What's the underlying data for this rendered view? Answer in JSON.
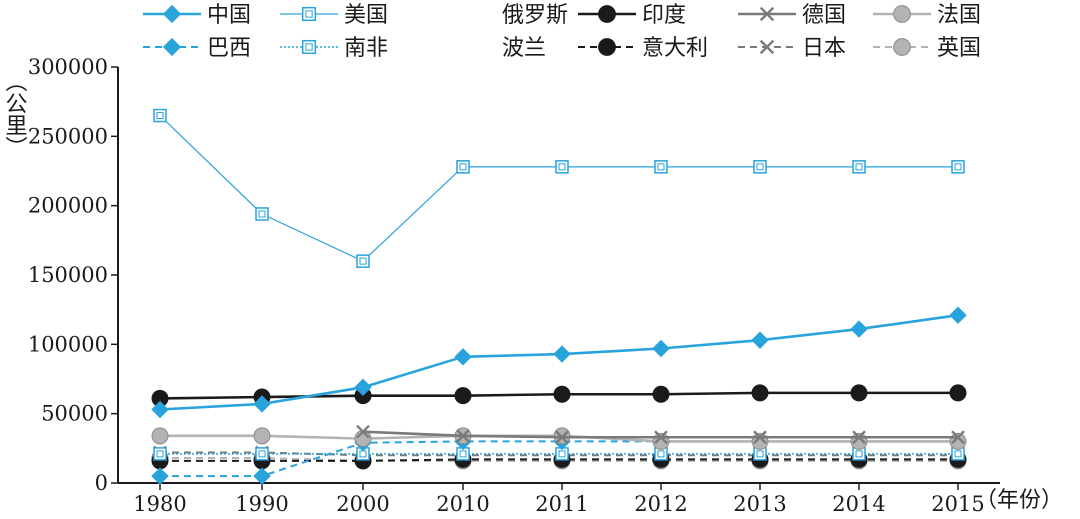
{
  "chart_data": {
    "type": "line",
    "title": "",
    "xlabel": "（年份）",
    "ylabel": "（公里）",
    "categories": [
      "1980",
      "1990",
      "2000",
      "2010",
      "2011",
      "2012",
      "2013",
      "2014",
      "2015"
    ],
    "ylim": [
      0,
      300000
    ],
    "yticks": [
      0,
      50000,
      100000,
      150000,
      200000,
      250000,
      300000
    ],
    "ytick_labels": [
      "0",
      "50000",
      "100000",
      "150000",
      "200000",
      "250000",
      "300000"
    ],
    "legend_position": "top",
    "series": [
      {
        "name": "中国",
        "color": "#29a3dc",
        "style": "solid",
        "marker": "diamond",
        "values": [
          53000,
          57000,
          69000,
          91000,
          93000,
          97000,
          103000,
          111000,
          121000
        ]
      },
      {
        "name": "美国",
        "color": "#29a3dc",
        "style": "thin",
        "marker": "square-hollow",
        "values": [
          265000,
          194000,
          160000,
          228000,
          228000,
          228000,
          228000,
          228000,
          228000
        ]
      },
      {
        "name": "俄罗斯",
        "color": "#9e9e9e",
        "style": "solid",
        "marker": "none",
        "values": [
          null,
          null,
          null,
          null,
          null,
          null,
          null,
          null,
          null
        ]
      },
      {
        "name": "印度",
        "color": "#1a1a1a",
        "style": "solid",
        "marker": "circle",
        "values": [
          61000,
          62000,
          63000,
          63000,
          64000,
          64000,
          65000,
          65000,
          65000
        ]
      },
      {
        "name": "德国",
        "color": "#7a7a7a",
        "style": "solid",
        "marker": "x",
        "values": [
          null,
          null,
          37000,
          34000,
          33000,
          33000,
          33000,
          33000,
          33000
        ]
      },
      {
        "name": "法国",
        "color": "#b3b3b3",
        "style": "solid",
        "marker": "circle",
        "values": [
          34000,
          34000,
          32000,
          34000,
          34000,
          30000,
          30000,
          30000,
          30000
        ]
      },
      {
        "name": "巴西",
        "color": "#29a3dc",
        "style": "dashed",
        "marker": "diamond",
        "values": [
          5000,
          5000,
          29000,
          30000,
          30000,
          30000,
          30000,
          30000,
          30000
        ]
      },
      {
        "name": "南非",
        "color": "#29a3dc",
        "style": "dotted",
        "marker": "square-hollow",
        "values": [
          21000,
          21000,
          21000,
          21000,
          21000,
          21000,
          21000,
          21000,
          21000
        ]
      },
      {
        "name": "波兰",
        "color": "#c7c7c7",
        "style": "dotted",
        "marker": "none",
        "values": [
          null,
          null,
          null,
          null,
          null,
          null,
          null,
          null,
          null
        ]
      },
      {
        "name": "意大利",
        "color": "#1a1a1a",
        "style": "dashed",
        "marker": "circle",
        "values": [
          16000,
          16000,
          16000,
          17000,
          17000,
          17000,
          17000,
          17000,
          17000
        ]
      },
      {
        "name": "日本",
        "color": "#7a7a7a",
        "style": "dashed",
        "marker": "x",
        "values": [
          22000,
          22000,
          20000,
          20000,
          20000,
          20000,
          20000,
          20000,
          20000
        ]
      },
      {
        "name": "英国",
        "color": "#b3b3b3",
        "style": "dashed",
        "marker": "circle",
        "values": [
          18000,
          18000,
          16000,
          16000,
          16000,
          16000,
          16000,
          16000,
          16000
        ]
      }
    ]
  }
}
